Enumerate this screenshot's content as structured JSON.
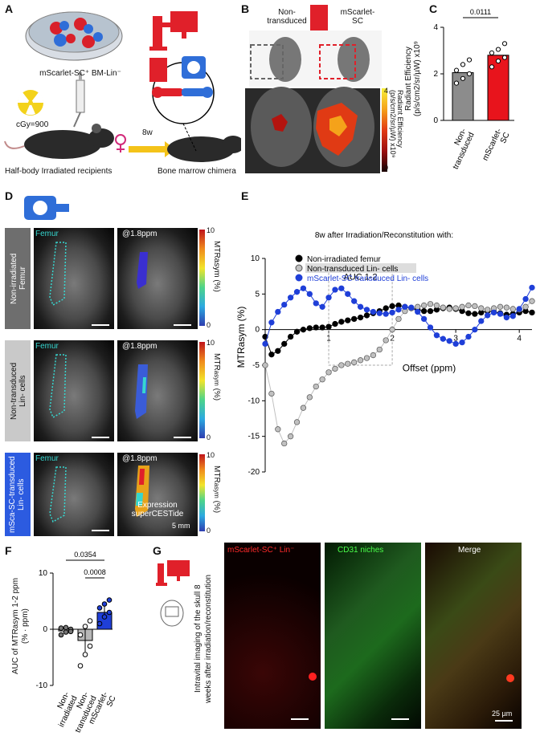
{
  "panels": {
    "A": "A",
    "B": "B",
    "C": "C",
    "D": "D",
    "E": "E",
    "F": "F",
    "G": "G"
  },
  "panelA": {
    "dish_label": "mScarlet-SC⁺ BM-Lin⁻",
    "dose": "cGy=900",
    "interval": "8w",
    "recipient_label": "Half-body Irradiated recipients",
    "chimera_label": "Bone marrow chimera"
  },
  "panelB": {
    "label_left": "Non-\ntransduced",
    "label_right": "mScarlet-\nSC",
    "colorbar_label": "Radiant Efficiency\n(p/s/cm2/sr/µW) x10⁹",
    "colorbar_max": "4",
    "colorbar_min": "0"
  },
  "panelC": {
    "ylabel": "Radiant Efficiency\n(p/s/cm2/sr/µW) x10⁹",
    "pvalue": "0.0111",
    "yticks": [
      "0",
      "2",
      "4"
    ]
  },
  "panelD": {
    "row_labels": [
      "Non-irradiated\nFemur",
      "Non-transduced\nLin- cells",
      "mSca-SC-transduced\nLin- cells"
    ],
    "femur_label": "Femur",
    "ppm_label": "@1.8ppm",
    "colorbar_label": "MTRasym (%)",
    "colorbar_label_sub": "MTR",
    "colorbar_label_sub2": "asym",
    "colorbar_label_sub3": " (%)",
    "colorbar_max": "10",
    "colorbar_min": "0",
    "expression_text": "Expression\nsuperCESTide",
    "scale_label": "5 mm"
  },
  "panelF": {
    "ylabel": "AUC of MTRasym 1-2 ppm\n(% · ppm)",
    "p1": "0.0354",
    "p2": "0.0008",
    "yticks": [
      "-10",
      "0",
      "10"
    ]
  },
  "panelG": {
    "side_label": "Intravital imaging of the skull 8\nweeks after irradiation/reconstitution",
    "titles": [
      "mScarlet-SC⁺ Lin⁻",
      "CD31 niches",
      "Merge"
    ],
    "scale_label": "25 µm"
  },
  "chart_data": [
    {
      "type": "bar",
      "categories": [
        "Non-\ntransduced",
        "mScarlet-\nSC"
      ],
      "values": [
        2.05,
        2.8
      ],
      "points": [
        [
          1.6,
          1.8,
          2.0,
          2.15,
          2.4,
          2.6
        ],
        [
          2.3,
          2.55,
          2.7,
          2.9,
          3.05,
          3.3
        ]
      ],
      "ylabel": "Radiant Efficiency\n(p/s/cm2/sr/µW) x10⁹",
      "ylim": [
        0,
        4
      ],
      "colors": [
        "#8c8c8c",
        "#e8141c"
      ]
    },
    {
      "type": "line",
      "title": "8w after Irradiation/Reconstitution with:",
      "xlabel": "Offset (ppm)",
      "ylabel": "MTRasym (%)",
      "xlim": [
        0,
        4.2
      ],
      "ylim": [
        -20,
        10
      ],
      "yticks": [
        -20,
        -15,
        -10,
        -5,
        0,
        5,
        10
      ],
      "xticks": [
        1,
        2,
        3,
        4
      ],
      "annotation": "AUC 1-2",
      "series": [
        {
          "name": "Non-irradiated femur",
          "color": "#000000",
          "x": [
            0,
            0.1,
            0.2,
            0.3,
            0.4,
            0.5,
            0.6,
            0.7,
            0.8,
            0.9,
            1.0,
            1.1,
            1.2,
            1.3,
            1.4,
            1.5,
            1.6,
            1.7,
            1.8,
            1.9,
            2.0,
            2.1,
            2.2,
            2.3,
            2.4,
            2.5,
            2.6,
            2.7,
            2.8,
            2.9,
            3.0,
            3.1,
            3.2,
            3.3,
            3.4,
            3.5,
            3.6,
            3.7,
            3.8,
            3.9,
            4.0,
            4.1,
            4.2
          ],
          "y": [
            -1,
            -3.5,
            -3,
            -2,
            -1,
            -0.3,
            0,
            0.2,
            0.3,
            0.3,
            0.4,
            0.8,
            1.1,
            1.3,
            1.5,
            1.7,
            2,
            2.3,
            2.6,
            3,
            3.3,
            3.4,
            3.2,
            3,
            2.8,
            2.6,
            2.6,
            2.8,
            3,
            3.1,
            2.9,
            2.6,
            2.3,
            2.2,
            2.4,
            2.6,
            2.5,
            2.3,
            2.1,
            2.2,
            2.4,
            2.6,
            2.4
          ]
        },
        {
          "name": "Non-transduced Lin- cells",
          "color": "#c0c0c0",
          "x": [
            0,
            0.1,
            0.2,
            0.3,
            0.4,
            0.5,
            0.6,
            0.7,
            0.8,
            0.9,
            1.0,
            1.1,
            1.2,
            1.3,
            1.4,
            1.5,
            1.6,
            1.7,
            1.8,
            1.9,
            2.0,
            2.1,
            2.2,
            2.3,
            2.4,
            2.5,
            2.6,
            2.7,
            2.8,
            2.9,
            3.0,
            3.1,
            3.2,
            3.3,
            3.4,
            3.5,
            3.6,
            3.7,
            3.8,
            3.9,
            4.0,
            4.1,
            4.2
          ],
          "y": [
            -5,
            -9,
            -14,
            -16,
            -15,
            -13,
            -11,
            -9.5,
            -8,
            -7,
            -6,
            -5.5,
            -5,
            -4.8,
            -4.6,
            -4.3,
            -4,
            -3.6,
            -2.8,
            -1.5,
            0,
            1.5,
            2.6,
            3,
            3.2,
            3.4,
            3.6,
            3.4,
            3.1,
            2.9,
            3,
            3.2,
            3.4,
            3.3,
            3,
            2.8,
            3,
            3.2,
            3.1,
            2.9,
            2.8,
            3.2,
            4
          ]
        },
        {
          "name": "mScarlet-SC transduced Lin- cells",
          "color": "#1f3fd8",
          "x": [
            0,
            0.1,
            0.2,
            0.3,
            0.4,
            0.5,
            0.6,
            0.7,
            0.8,
            0.9,
            1.0,
            1.1,
            1.2,
            1.3,
            1.4,
            1.5,
            1.6,
            1.7,
            1.8,
            1.9,
            2.0,
            2.1,
            2.2,
            2.3,
            2.4,
            2.5,
            2.6,
            2.7,
            2.8,
            2.9,
            3.0,
            3.1,
            3.2,
            3.3,
            3.4,
            3.5,
            3.6,
            3.7,
            3.8,
            3.9,
            4.0,
            4.1,
            4.2
          ],
          "y": [
            -2,
            1,
            2.5,
            3.5,
            4.5,
            5.3,
            5.8,
            5,
            3.7,
            3.2,
            4.5,
            5.6,
            5.8,
            5,
            4,
            3.2,
            2.8,
            2.5,
            2.3,
            2.2,
            2.4,
            2.8,
            3.2,
            3.1,
            2.5,
            1.5,
            0.3,
            -0.8,
            -1.3,
            -1.6,
            -2,
            -1.8,
            -1,
            0,
            1.2,
            2,
            2.4,
            2.2,
            1.7,
            1.9,
            2.9,
            4.3,
            5.9
          ]
        }
      ]
    },
    {
      "type": "bar",
      "categories": [
        "Non-\nirradiated",
        "Non-\ntransduced",
        "mScarlet-\nSC"
      ],
      "values": [
        -0.3,
        -2.0,
        3.0
      ],
      "errors": [
        0.6,
        2.0,
        1.2
      ],
      "points": [
        [
          -1,
          -0.5,
          0,
          0.2,
          0.3,
          -0.4
        ],
        [
          -6.5,
          -4.5,
          -3,
          -1,
          0.5,
          1.5
        ],
        [
          1,
          2.2,
          3,
          3.8,
          4.5,
          5.2
        ]
      ],
      "ylabel": "AUC of MTRasym 1-2 ppm\n(% · ppm)",
      "ylim": [
        -10,
        10
      ],
      "colors": [
        "#ffffff",
        "#b7b7b7",
        "#1f3fd8"
      ]
    }
  ]
}
